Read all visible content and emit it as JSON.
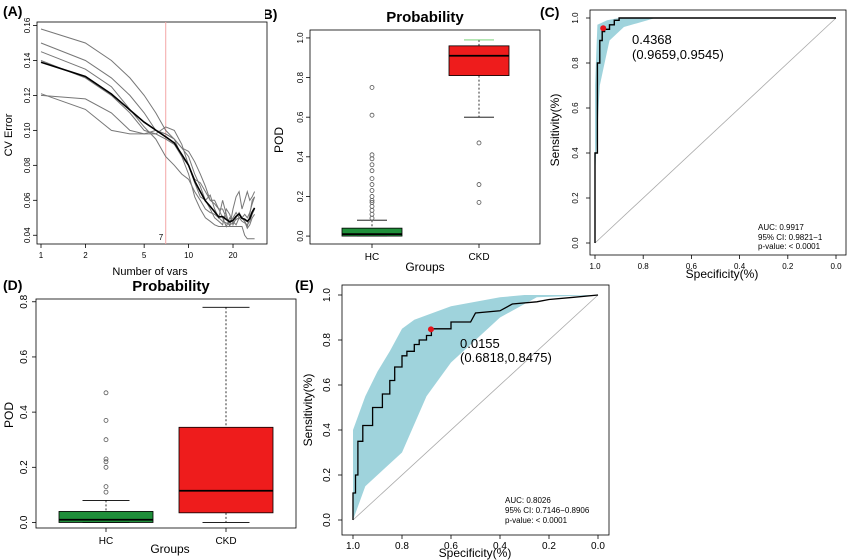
{
  "panels": {
    "A": {
      "label": "(A)"
    },
    "B": {
      "label": "(B)"
    },
    "C": {
      "label": "(C)"
    },
    "D": {
      "label": "(D)"
    },
    "E": {
      "label": "(E)"
    }
  },
  "colors": {
    "hc_box": "#1f8f3a",
    "ckd_box": "#ee1c1c",
    "ci_band": "#9fd3dc",
    "cutoff_line": "#f4a6a6",
    "point": "#e4151b"
  },
  "chart_data": [
    {
      "panel": "A",
      "type": "line",
      "title": "",
      "xlabel": "Number of vars",
      "ylabel": "CV Error",
      "x_scale": "log",
      "xlim": [
        1,
        30
      ],
      "ylim": [
        0.035,
        0.162
      ],
      "x_ticks": [
        "1",
        "2",
        "5",
        "10",
        "20"
      ],
      "y_ticks": [
        "0.04",
        "0.06",
        "0.08",
        "0.10",
        "0.12",
        "0.14",
        "0.16"
      ],
      "cutoff": {
        "x": 7,
        "label": "7"
      },
      "x": [
        1,
        2,
        3,
        4,
        5,
        6,
        7,
        8,
        9,
        10,
        11,
        12,
        13,
        14,
        15,
        16,
        17,
        18,
        19,
        20,
        21,
        22,
        23,
        24,
        25,
        26,
        27,
        28
      ],
      "series": [
        {
          "values": [
            0.158,
            0.15,
            0.14,
            0.13,
            0.12,
            0.11,
            0.1,
            0.095,
            0.085,
            0.08,
            0.07,
            0.062,
            0.06,
            0.063,
            0.055,
            0.05,
            0.06,
            0.052,
            0.045,
            0.055,
            0.062,
            0.065,
            0.055,
            0.06,
            0.065,
            0.06,
            0.062,
            0.065
          ]
        },
        {
          "values": [
            0.15,
            0.14,
            0.13,
            0.12,
            0.11,
            0.1,
            0.098,
            0.095,
            0.09,
            0.085,
            0.075,
            0.068,
            0.06,
            0.055,
            0.05,
            0.048,
            0.046,
            0.055,
            0.052,
            0.046,
            0.05,
            0.053,
            0.05,
            0.052,
            0.05,
            0.053,
            0.058,
            0.062
          ]
        },
        {
          "values": [
            0.14,
            0.13,
            0.12,
            0.11,
            0.1,
            0.098,
            0.102,
            0.1,
            0.092,
            0.08,
            0.072,
            0.07,
            0.065,
            0.06,
            0.06,
            0.055,
            0.055,
            0.05,
            0.048,
            0.05,
            0.053,
            0.05,
            0.05,
            0.048,
            0.045,
            0.052,
            0.06,
            0.062
          ]
        },
        {
          "values": [
            0.12,
            0.118,
            0.11,
            0.1,
            0.098,
            0.1,
            0.098,
            0.095,
            0.09,
            0.088,
            0.082,
            0.075,
            0.068,
            0.06,
            0.058,
            0.055,
            0.05,
            0.045,
            0.05,
            0.048,
            0.046,
            0.05,
            0.05,
            0.048,
            0.044,
            0.046,
            0.05,
            0.052
          ]
        },
        {
          "values": [
            0.121,
            0.112,
            0.1,
            0.098,
            0.098,
            0.098,
            0.095,
            0.092,
            0.085,
            0.075,
            0.062,
            0.055,
            0.05,
            0.048,
            0.046,
            0.045,
            0.045,
            0.045,
            0.045,
            0.045,
            0.045,
            0.045,
            0.045,
            0.04,
            0.038,
            0.038,
            0.038,
            0.038
          ]
        },
        {
          "values": [
            0.145,
            0.135,
            0.125,
            0.112,
            0.102,
            0.095,
            0.085,
            0.08,
            0.075,
            0.072,
            0.065,
            0.06,
            0.055,
            0.053,
            0.052,
            0.05,
            0.048,
            0.047,
            0.046,
            0.047,
            0.049,
            0.05,
            0.048,
            0.047,
            0.046,
            0.048,
            0.052,
            0.055
          ]
        }
      ]
    },
    {
      "panel": "B",
      "type": "boxplot",
      "title": "Probability",
      "xlabel": "Groups",
      "ylabel": "POD",
      "ylim": [
        -0.04,
        1.04
      ],
      "y_ticks": [
        "0.0",
        "0.2",
        "0.4",
        "0.6",
        "0.8",
        "1.0"
      ],
      "categories": [
        "HC",
        "CKD"
      ],
      "boxes": [
        {
          "group": "HC",
          "min": 0.0,
          "q1": 0.0,
          "median": 0.01,
          "q3": 0.04,
          "max": 0.08,
          "outliers": [
            0.75,
            0.61,
            0.41,
            0.39,
            0.36,
            0.33,
            0.29,
            0.26,
            0.23,
            0.2,
            0.18,
            0.17,
            0.15,
            0.13,
            0.11,
            0.09
          ]
        },
        {
          "group": "CKD",
          "min": 0.6,
          "q1": 0.81,
          "median": 0.91,
          "q3": 0.96,
          "max": 0.99,
          "outliers": [
            0.47,
            0.26,
            0.17
          ]
        }
      ]
    },
    {
      "panel": "C",
      "type": "roc",
      "title": "",
      "xlabel": "Specificity(%)",
      "ylabel": "Sensitivity(%)",
      "x_ticks": [
        "1.0",
        "0.8",
        "0.6",
        "0.4",
        "0.2",
        "0.0"
      ],
      "y_ticks": [
        "0.0",
        "0.2",
        "0.4",
        "0.6",
        "0.8",
        "1.0"
      ],
      "curve": {
        "specificity": [
          1.0,
          1.0,
          0.99,
          0.99,
          0.98,
          0.98,
          0.97,
          0.97,
          0.96,
          0.96,
          0.94,
          0.94,
          0.92,
          0.92,
          0.9,
          0.9,
          0.0
        ],
        "sensitivity": [
          0.0,
          0.4,
          0.4,
          0.8,
          0.8,
          0.9,
          0.9,
          0.94,
          0.94,
          0.95,
          0.95,
          0.97,
          0.97,
          0.99,
          0.99,
          1.0,
          1.0
        ]
      },
      "ci_band": {
        "upper": [
          [
            1.0,
            0.7
          ],
          [
            0.99,
            0.97
          ],
          [
            0.95,
            0.99
          ],
          [
            0.9,
            1.0
          ],
          [
            0.75,
            1.0
          ]
        ],
        "lower": [
          [
            0.75,
            1.0
          ],
          [
            0.88,
            0.96
          ],
          [
            0.94,
            0.9
          ],
          [
            0.96,
            0.8
          ],
          [
            0.98,
            0.7
          ],
          [
            0.99,
            0.5
          ],
          [
            1.0,
            0.3
          ]
        ]
      },
      "cutoff_point": {
        "specificity": 0.9659,
        "sensitivity": 0.9545
      },
      "annotation": {
        "threshold": "0.4368",
        "coords": "(0.9659,0.9545)"
      },
      "stats": {
        "auc": "AUC: 0.9917",
        "ci": "95% CI: 0.9821−1",
        "pvalue": "p-value: < 0.0001"
      }
    },
    {
      "panel": "D",
      "type": "boxplot",
      "title": "Probability",
      "xlabel": "Groups",
      "ylabel": "POD",
      "ylim": [
        -0.02,
        0.81
      ],
      "y_ticks": [
        "0.0",
        "0.2",
        "0.4",
        "0.6",
        "0.8"
      ],
      "categories": [
        "HC",
        "CKD"
      ],
      "boxes": [
        {
          "group": "HC",
          "min": 0.0,
          "q1": 0.0,
          "median": 0.01,
          "q3": 0.04,
          "max": 0.08,
          "outliers": [
            0.47,
            0.37,
            0.3,
            0.23,
            0.22,
            0.2,
            0.13,
            0.11
          ]
        },
        {
          "group": "CKD",
          "min": 0.0,
          "q1": 0.035,
          "median": 0.115,
          "q3": 0.345,
          "max": 0.78,
          "outliers": []
        }
      ]
    },
    {
      "panel": "E",
      "type": "roc",
      "title": "",
      "xlabel": "Specificity(%)",
      "ylabel": "Sensitivity(%)",
      "x_ticks": [
        "1.0",
        "0.8",
        "0.6",
        "0.4",
        "0.2",
        "0.0"
      ],
      "y_ticks": [
        "0.0",
        "0.2",
        "0.4",
        "0.6",
        "0.8",
        "1.0"
      ],
      "curve": {
        "specificity": [
          1.0,
          1.0,
          0.99,
          0.99,
          0.98,
          0.98,
          0.96,
          0.96,
          0.92,
          0.92,
          0.88,
          0.88,
          0.85,
          0.85,
          0.83,
          0.83,
          0.8,
          0.8,
          0.78,
          0.78,
          0.75,
          0.75,
          0.73,
          0.73,
          0.7,
          0.7,
          0.68,
          0.68,
          0.6,
          0.6,
          0.52,
          0.5,
          0.4,
          0.35,
          0.25,
          0.2,
          0.1,
          0.0
        ],
        "sensitivity": [
          0.0,
          0.12,
          0.12,
          0.2,
          0.2,
          0.35,
          0.35,
          0.42,
          0.42,
          0.5,
          0.5,
          0.56,
          0.56,
          0.62,
          0.62,
          0.68,
          0.68,
          0.73,
          0.73,
          0.75,
          0.75,
          0.78,
          0.78,
          0.8,
          0.8,
          0.82,
          0.82,
          0.85,
          0.85,
          0.88,
          0.88,
          0.92,
          0.93,
          0.96,
          0.97,
          0.98,
          0.99,
          1.0
        ]
      },
      "ci_band": {
        "upper": [
          [
            1.0,
            0.4
          ],
          [
            0.95,
            0.55
          ],
          [
            0.9,
            0.66
          ],
          [
            0.85,
            0.75
          ],
          [
            0.8,
            0.85
          ],
          [
            0.75,
            0.89
          ],
          [
            0.7,
            0.91
          ],
          [
            0.6,
            0.95
          ],
          [
            0.5,
            0.97
          ],
          [
            0.4,
            0.99
          ],
          [
            0.3,
            1.0
          ],
          [
            0.0,
            1.0
          ]
        ],
        "lower": [
          [
            0.25,
            0.99
          ],
          [
            0.4,
            0.9
          ],
          [
            0.5,
            0.8
          ],
          [
            0.6,
            0.7
          ],
          [
            0.7,
            0.55
          ],
          [
            0.8,
            0.3
          ],
          [
            0.9,
            0.2
          ],
          [
            0.95,
            0.15
          ],
          [
            1.0,
            0.0
          ]
        ]
      },
      "cutoff_point": {
        "specificity": 0.6818,
        "sensitivity": 0.8475
      },
      "annotation": {
        "threshold": "0.0155",
        "coords": "(0.6818,0.8475)"
      },
      "stats": {
        "auc": "AUC: 0.8026",
        "ci": "95% CI: 0.7146−0.8906",
        "pvalue": "p-value: < 0.0001"
      }
    }
  ]
}
